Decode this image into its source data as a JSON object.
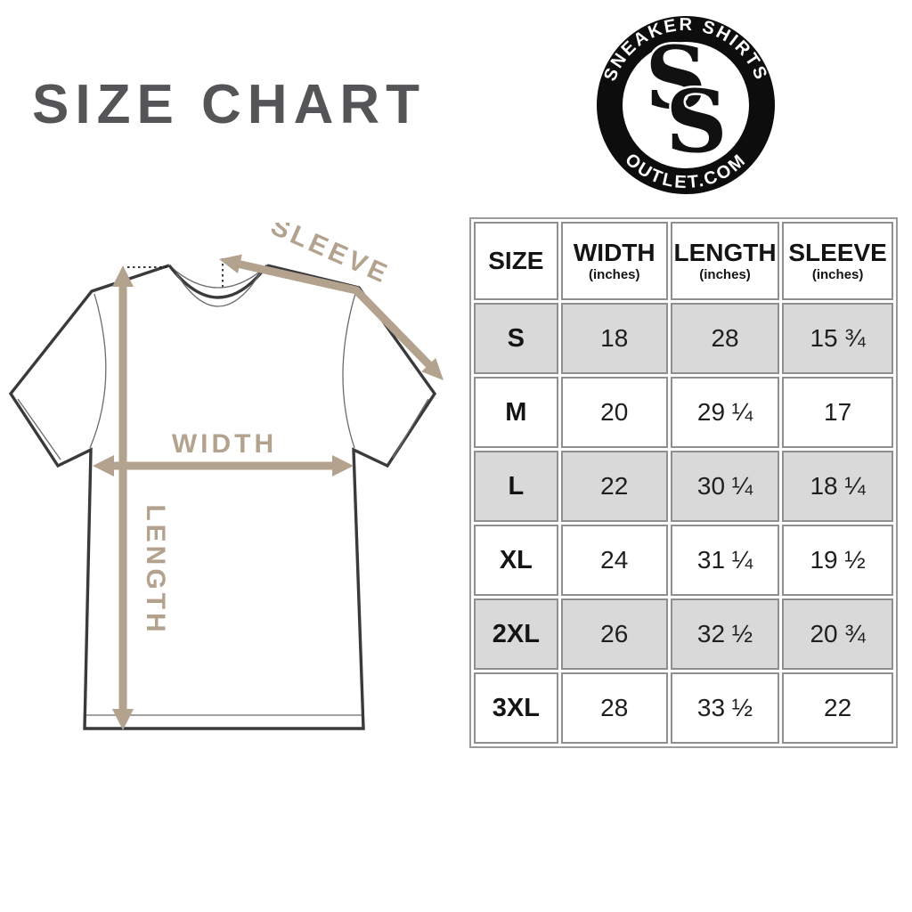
{
  "title": "SIZE CHART",
  "logo": {
    "top_text": "SNEAKER SHIRTS",
    "bottom_text": "OUTLET.COM",
    "monogram": "SS",
    "monogram_letters": [
      "S",
      "S"
    ],
    "colors": {
      "ring": "#0d0d0d",
      "inner": "#ffffff",
      "text": "#ffffff"
    }
  },
  "diagram": {
    "labels": {
      "sleeve": "SLEEVE",
      "width": "WIDTH",
      "length": "LENGTH"
    },
    "colors": {
      "arrow": "#b3a28e",
      "outline": "#3a3a3c",
      "seam": "#6b6b6b"
    }
  },
  "table": {
    "headers": [
      {
        "label": "SIZE",
        "sub": ""
      },
      {
        "label": "WIDTH",
        "sub": "(inches)"
      },
      {
        "label": "LENGTH",
        "sub": "(inches)"
      },
      {
        "label": "SLEEVE",
        "sub": "(inches)"
      }
    ],
    "rows": [
      {
        "size": "S",
        "width": "18",
        "length": "28",
        "sleeve": "15 ¾",
        "shaded": true
      },
      {
        "size": "M",
        "width": "20",
        "length": "29 ¼",
        "sleeve": "17",
        "shaded": false
      },
      {
        "size": "L",
        "width": "22",
        "length": "30 ¼",
        "sleeve": "18 ¼",
        "shaded": true
      },
      {
        "size": "XL",
        "width": "24",
        "length": "31 ¼",
        "sleeve": "19 ½",
        "shaded": false
      },
      {
        "size": "2XL",
        "width": "26",
        "length": "32 ½",
        "sleeve": "20 ¾",
        "shaded": true
      },
      {
        "size": "3XL",
        "width": "28",
        "length": "33 ½",
        "sleeve": "22",
        "shaded": false
      }
    ],
    "colors": {
      "shaded_row": "#d9d9d9",
      "border": "#8f8f8f",
      "text": "#141414"
    }
  },
  "chart_data": {
    "type": "table",
    "title": "SIZE CHART",
    "columns": [
      "SIZE",
      "WIDTH (inches)",
      "LENGTH (inches)",
      "SLEEVE (inches)"
    ],
    "rows": [
      [
        "S",
        "18",
        "28",
        "15 ¾"
      ],
      [
        "M",
        "20",
        "29 ¼",
        "17"
      ],
      [
        "L",
        "22",
        "30 ¼",
        "18 ¼"
      ],
      [
        "XL",
        "24",
        "31 ¼",
        "19 ½"
      ],
      [
        "2XL",
        "26",
        "32 ½",
        "20 ¾"
      ],
      [
        "3XL",
        "28",
        "33 ½",
        "22"
      ]
    ]
  }
}
